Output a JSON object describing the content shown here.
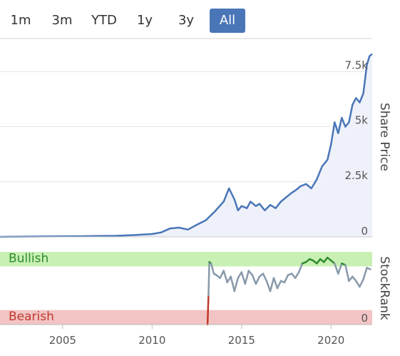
{
  "range_selector": {
    "buttons": [
      {
        "label": "1m",
        "active": false
      },
      {
        "label": "3m",
        "active": false
      },
      {
        "label": "YTD",
        "active": false
      },
      {
        "label": "1y",
        "active": false
      },
      {
        "label": "3y",
        "active": false
      },
      {
        "label": "All",
        "active": true
      }
    ]
  },
  "chart_data": [
    {
      "type": "area",
      "ylabel": "Share Price",
      "ylim": [
        0,
        9000
      ],
      "yticks": [
        0,
        2500,
        5000,
        7500
      ],
      "ytick_labels": [
        "0",
        "2.5k",
        "5k",
        "7.5k"
      ],
      "x_range": [
        2001.5,
        2022.3
      ],
      "line_color": "#4a76b8",
      "fill_color": "#eef1f9",
      "grid": true,
      "series": [
        {
          "x": [
            2001.5,
            2004.0,
            2006.0,
            2008.0,
            2009.0,
            2010.0,
            2010.5,
            2011.0,
            2011.5,
            2012.0,
            2012.5,
            2013.0,
            2013.5,
            2014.0,
            2014.3,
            2014.6,
            2014.8,
            2015.0,
            2015.3,
            2015.5,
            2015.8,
            2016.0,
            2016.3,
            2016.6,
            2016.9,
            2017.2,
            2017.5,
            2017.8,
            2018.0,
            2018.3,
            2018.6,
            2018.9,
            2019.2,
            2019.5,
            2019.8,
            2020.0,
            2020.2,
            2020.4,
            2020.6,
            2020.8,
            2021.0,
            2021.2,
            2021.4,
            2021.6,
            2021.8,
            2022.0,
            2022.15,
            2022.3
          ],
          "y": [
            0,
            20,
            30,
            50,
            80,
            130,
            200,
            380,
            420,
            330,
            550,
            750,
            1150,
            1600,
            2200,
            1700,
            1200,
            1400,
            1300,
            1600,
            1400,
            1500,
            1200,
            1450,
            1300,
            1600,
            1800,
            2000,
            2100,
            2300,
            2400,
            2200,
            2600,
            3200,
            3500,
            4200,
            5200,
            4700,
            5400,
            5000,
            5200,
            6000,
            6300,
            6100,
            6500,
            7800,
            8200,
            8300
          ]
        }
      ]
    },
    {
      "type": "line",
      "ylabel": "StockRank",
      "ylim": [
        0,
        100
      ],
      "ytick_labels": [
        "0"
      ],
      "x_range": [
        2001.5,
        2022.3
      ],
      "xticks": [
        2005,
        2010,
        2015,
        2020
      ],
      "xtick_labels": [
        "2005",
        "2010",
        "2015",
        "2020"
      ],
      "zones": [
        {
          "label": "Bullish",
          "from": 80,
          "to": 100,
          "color": "#c8f0b4",
          "text_color": "#2e8b2e"
        },
        {
          "label": "Bearish",
          "from": 0,
          "to": 20,
          "color": "#f2c4c4",
          "text_color": "#c0392b"
        }
      ],
      "line_colors": {
        "bullish": "#2e8b2e",
        "neutral": "#8899aa",
        "bearish": "#c0392b"
      },
      "series": [
        {
          "x": [
            2013.1,
            2013.15,
            2013.2,
            2013.3,
            2013.45,
            2013.6,
            2013.8,
            2014.0,
            2014.2,
            2014.4,
            2014.6,
            2014.8,
            2015.0,
            2015.2,
            2015.4,
            2015.6,
            2015.8,
            2016.0,
            2016.2,
            2016.4,
            2016.6,
            2016.8,
            2017.0,
            2017.2,
            2017.4,
            2017.6,
            2017.8,
            2018.0,
            2018.2,
            2018.4,
            2018.6,
            2018.8,
            2019.0,
            2019.2,
            2019.4,
            2019.6,
            2019.8,
            2020.0,
            2020.2,
            2020.4,
            2020.6,
            2020.8,
            2021.0,
            2021.2,
            2021.4,
            2021.6,
            2021.8,
            2022.0,
            2022.2
          ],
          "y": [
            0,
            40,
            86,
            84,
            70,
            68,
            64,
            74,
            58,
            66,
            46,
            64,
            72,
            56,
            74,
            68,
            56,
            66,
            70,
            60,
            46,
            64,
            50,
            60,
            58,
            68,
            70,
            64,
            72,
            84,
            86,
            90,
            88,
            84,
            90,
            86,
            92,
            88,
            84,
            70,
            84,
            82,
            60,
            66,
            60,
            52,
            62,
            78,
            76
          ]
        }
      ]
    }
  ]
}
